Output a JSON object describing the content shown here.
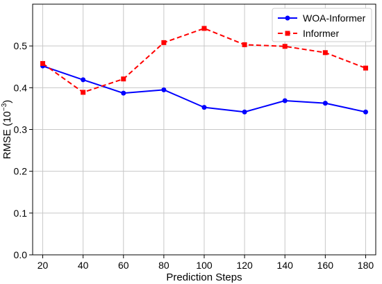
{
  "chart_data": {
    "type": "line",
    "xlabel": "Prediction Steps",
    "ylabel_main": "RMSE (10",
    "ylabel_exp": "−3",
    "ylabel_close": ")",
    "x": [
      20,
      40,
      60,
      80,
      100,
      120,
      140,
      160,
      180
    ],
    "x_ticks": [
      "20",
      "40",
      "60",
      "80",
      "100",
      "120",
      "140",
      "160",
      "180"
    ],
    "y_ticks": [
      "0.0",
      "0.1",
      "0.2",
      "0.3",
      "0.4",
      "0.5"
    ],
    "xlim": [
      15,
      185
    ],
    "ylim": [
      0.0,
      0.6
    ],
    "grid": true,
    "legend_position": "top-right",
    "series": [
      {
        "name": "WOA-Informer",
        "color": "#0000ff",
        "line_style": "solid",
        "marker": "circle",
        "values": [
          0.452,
          0.419,
          0.387,
          0.395,
          0.353,
          0.342,
          0.369,
          0.363,
          0.342
        ]
      },
      {
        "name": "Informer",
        "color": "#ff0000",
        "line_style": "dashed",
        "marker": "square",
        "values": [
          0.458,
          0.389,
          0.421,
          0.508,
          0.542,
          0.503,
          0.499,
          0.484,
          0.447
        ]
      }
    ]
  }
}
